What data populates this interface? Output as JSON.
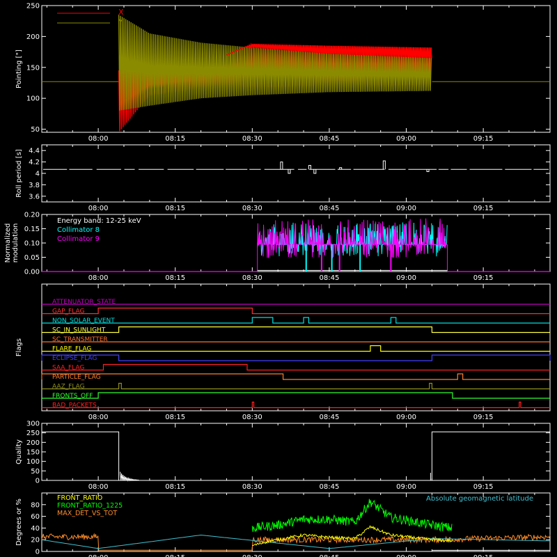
{
  "colors": {
    "background": "#000000",
    "axis": "#ffffff",
    "x": "#ff0000",
    "y": "#8b8b00",
    "trace": "#ffffff",
    "c8": "#00ffff",
    "c9": "#ff00ff",
    "front_ratio": "#ffff00",
    "front_ratio_1225": "#00ff00",
    "max_det": "#ff8c28",
    "geomag": "#40c0d0"
  },
  "chart_data": [
    {
      "type": "line",
      "name": "pointing",
      "ylabel": "Pointing [\"]",
      "xlim": [
        "07:49",
        "09:28"
      ],
      "ylim": [
        45,
        250
      ],
      "x_ticks": [
        "08:00",
        "08:15",
        "08:30",
        "08:45",
        "09:00",
        "09:15"
      ],
      "y_ticks": [
        50,
        100,
        150,
        200,
        250
      ],
      "legend": {
        "position": "top-left",
        "entries": [
          "X",
          "Y"
        ]
      },
      "baseline": 127,
      "oscillation_start": "08:04",
      "oscillation_end": "09:05",
      "series": [
        {
          "key": "X",
          "x": [
            "08:04",
            "08:10",
            "08:20",
            "08:30",
            "08:45",
            "09:05"
          ],
          "lower": [
            45,
            105,
            115,
            118,
            120,
            122
          ],
          "upper": [
            145,
            145,
            152,
            188,
            185,
            182
          ]
        },
        {
          "key": "Y",
          "x": [
            "08:04",
            "08:10",
            "08:20",
            "08:30",
            "08:45",
            "09:05"
          ],
          "lower": [
            80,
            88,
            100,
            105,
            110,
            112
          ],
          "upper": [
            235,
            205,
            190,
            182,
            172,
            165
          ]
        }
      ]
    },
    {
      "type": "line",
      "name": "roll",
      "ylabel": "Roll period [s]",
      "xlim": [
        "07:49",
        "09:28"
      ],
      "ylim": [
        3.5,
        4.5
      ],
      "x_ticks": [
        "08:00",
        "08:15",
        "08:30",
        "08:45",
        "09:00",
        "09:15"
      ],
      "y_ticks": [
        3.6,
        3.8,
        4.0,
        4.2,
        4.4
      ],
      "baseline": 4.07,
      "spikes": [
        {
          "t": "08:35.5",
          "v": 4.2
        },
        {
          "t": "08:41",
          "v": 4.14
        },
        {
          "t": "08:42",
          "v": 4.0
        },
        {
          "t": "08:37",
          "v": 4.0
        },
        {
          "t": "08:47",
          "v": 4.1
        },
        {
          "t": "08:55.5",
          "v": 4.22
        },
        {
          "t": "09:04",
          "v": 4.03
        }
      ]
    },
    {
      "type": "line",
      "name": "modulation",
      "ylabel": "Normalized\nmodulation",
      "xlim": [
        "07:49",
        "09:28"
      ],
      "ylim": [
        0,
        0.2
      ],
      "x_ticks": [
        "08:00",
        "08:15",
        "08:30",
        "08:45",
        "09:00",
        "09:15"
      ],
      "y_ticks": [
        "0.00",
        "0.05",
        "0.10",
        "0.15",
        "0.20"
      ],
      "legend": {
        "position": "top-left",
        "title": "Energy band: 12-25 keV",
        "entries": [
          "Collimator 8",
          "Collimator 9"
        ]
      },
      "active_start": "08:31",
      "active_end": "09:08",
      "base_level": 0.095,
      "dips": [
        "08:40.5",
        "08:43.5",
        "08:45.5",
        "08:47",
        "08:51",
        "08:57"
      ],
      "series": [
        {
          "key": "C8"
        },
        {
          "key": "C9"
        }
      ]
    },
    {
      "type": "line",
      "name": "flags",
      "ylabel": "Flags",
      "xlim": [
        "07:49",
        "09:28"
      ],
      "x_ticks": [
        "08:00",
        "08:15",
        "08:30",
        "08:45",
        "09:00",
        "09:15"
      ],
      "flags": [
        {
          "label": "ATTENUATOR_STATE",
          "color": "#c000c0",
          "segments": []
        },
        {
          "label": "GAP_FLAG",
          "color": "#ff3030",
          "segments": [
            [
              "08:00",
              "08:30"
            ]
          ]
        },
        {
          "label": "NON_SOLAR_EVENT",
          "color": "#00e0e0",
          "segments": [
            [
              "08:30",
              "08:34"
            ],
            [
              "08:40",
              "08:41"
            ],
            [
              "08:57",
              "08:58"
            ]
          ]
        },
        {
          "label": "SC_IN_SUNLIGHT",
          "color": "#ffff40",
          "segments": [
            [
              "08:04",
              "09:05"
            ]
          ]
        },
        {
          "label": "SC_TRANSMITTER",
          "color": "#ff7030",
          "segments": []
        },
        {
          "label": "FLARE_FLAG",
          "color": "#ffff00",
          "segments": [
            [
              "08:53",
              "08:55"
            ]
          ]
        },
        {
          "label": "ECLIPSE_FLAG",
          "color": "#4040ff",
          "segments": [
            [
              "07:49",
              "08:04"
            ],
            [
              "09:05",
              "09:28"
            ]
          ]
        },
        {
          "label": "SAA_FLAG",
          "color": "#ff2020",
          "segments": [
            [
              "08:01",
              "08:29"
            ]
          ]
        },
        {
          "label": "PARTICLE_FLAG",
          "color": "#ff8030",
          "segments": [
            [
              "07:49",
              "08:36"
            ],
            [
              "09:10",
              "09:11"
            ]
          ]
        },
        {
          "label": "AAZ_FLAG",
          "color": "#909020",
          "segments": [
            [
              "08:04",
              "08:04.5"
            ],
            [
              "09:04.5",
              "09:05"
            ]
          ]
        },
        {
          "label": "FRONTS_OFF",
          "color": "#30ff30",
          "segments": [
            [
              "08:00",
              "09:09"
            ]
          ]
        },
        {
          "label": "BAD_PACKETS",
          "color": "#ff2020",
          "segments": [
            [
              "08:30",
              "08:30.3"
            ],
            [
              "09:22",
              "09:22.3"
            ]
          ]
        }
      ]
    },
    {
      "type": "line",
      "name": "quality",
      "ylabel": "Quality",
      "xlim": [
        "07:49",
        "09:28"
      ],
      "ylim": [
        0,
        300
      ],
      "x_ticks": [
        "08:00",
        "08:15",
        "08:30",
        "08:45",
        "09:00",
        "09:15"
      ],
      "y_ticks": [
        0,
        50,
        100,
        150,
        200,
        250,
        300
      ],
      "high_value": 255,
      "low_value": 0,
      "drop_time": "08:04",
      "rise_time": "09:05"
    },
    {
      "type": "line",
      "name": "ratios",
      "ylabel": "Degrees or %",
      "xlim": [
        "07:49",
        "09:28"
      ],
      "ylim": [
        0,
        100
      ],
      "x_ticks": [
        "08:00",
        "08:15",
        "08:30",
        "08:45",
        "09:00",
        "09:15"
      ],
      "y_ticks": [
        0,
        20,
        40,
        60,
        80
      ],
      "legend": {
        "position": "top-left",
        "entries": [
          "FRONT_RATIO",
          "FRONT_RATIO_1225",
          "MAX_DET_VS_TOT"
        ]
      },
      "right_label": "Absolute geomagnetic latitude",
      "series": [
        {
          "key": "FRONT_RATIO",
          "x": [
            "08:30",
            "08:33",
            "08:40",
            "08:45",
            "08:50",
            "08:53",
            "08:57",
            "09:05",
            "09:09"
          ],
          "y": [
            10,
            17,
            28,
            24,
            22,
            42,
            28,
            20,
            18
          ]
        },
        {
          "key": "FRONT_RATIO_1225",
          "x": [
            "08:30",
            "08:35",
            "08:40",
            "08:45",
            "08:50",
            "08:53",
            "08:57",
            "09:05",
            "09:09"
          ],
          "y": [
            40,
            45,
            55,
            55,
            50,
            85,
            58,
            45,
            40
          ]
        },
        {
          "key": "MAX_DET_VS_TOT",
          "x": [
            "07:49",
            "08:00",
            "08:00",
            "08:30",
            "08:30",
            "09:05",
            "09:28"
          ],
          "y": [
            25,
            25,
            2,
            2,
            20,
            20,
            25
          ]
        },
        {
          "key": "GEOMAG",
          "x": [
            "07:49",
            "08:00",
            "08:20",
            "08:45",
            "09:05",
            "09:28"
          ],
          "y": [
            20,
            5,
            28,
            5,
            22,
            18
          ]
        }
      ]
    }
  ]
}
